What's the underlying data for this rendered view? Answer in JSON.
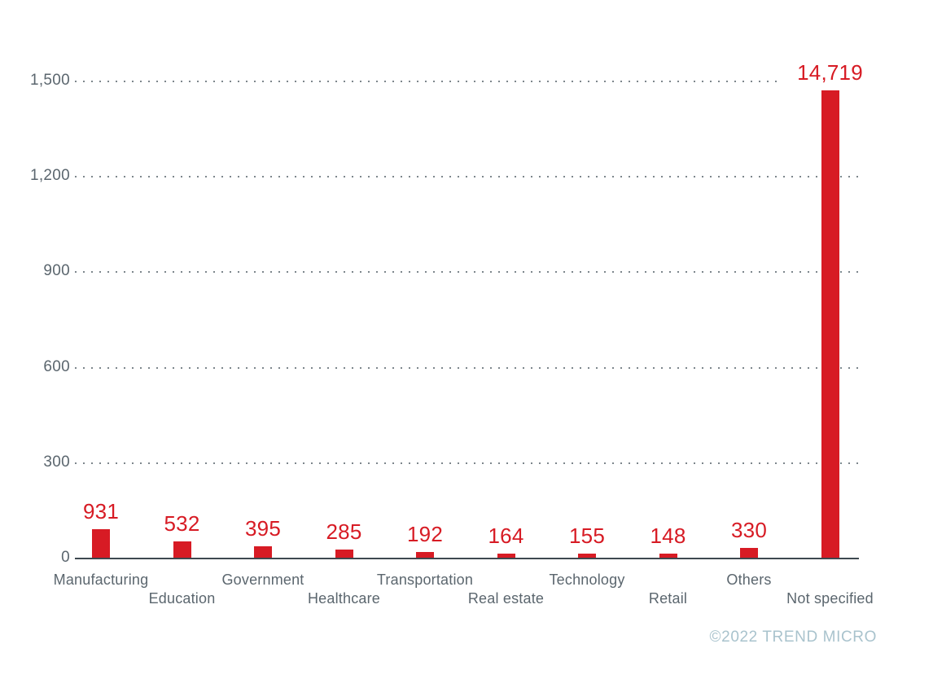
{
  "chart_data": {
    "type": "bar",
    "title": "",
    "xlabel": "",
    "ylabel": "",
    "categories": [
      "Manufacturing",
      "Education",
      "Government",
      "Healthcare",
      "Transportation",
      "Real estate",
      "Technology",
      "Retail",
      "Others",
      "Not specified"
    ],
    "values": [
      931,
      532,
      395,
      285,
      192,
      164,
      155,
      148,
      330,
      14719
    ],
    "value_labels": [
      "931",
      "532",
      "395",
      "285",
      "192",
      "164",
      "155",
      "148",
      "330",
      "14,719"
    ],
    "ylim": [
      0,
      1500
    ],
    "yticks": [
      0,
      300,
      600,
      900,
      1200,
      1500
    ],
    "ytick_labels": [
      "0",
      "300",
      "600",
      "900",
      "1,200",
      "1,500"
    ],
    "grid": "horizontal dotted lines at each y tick except 0",
    "legend": "none",
    "bar_value_divisor": 10,
    "note": "bars are rendered at value/10 against the 0-1500 axis; tallest bar (14,719) reaches ~1,472 axis units"
  },
  "colors": {
    "bar": "#d71b24",
    "value_label": "#d71b24",
    "axis_text": "#5b666e",
    "axis_line": "#3e4950",
    "gridline_dots": "#7d868c",
    "footer_text": "#a9c3cd",
    "background": "#ffffff"
  },
  "footer": {
    "text": "©2022 TREND MICRO"
  }
}
